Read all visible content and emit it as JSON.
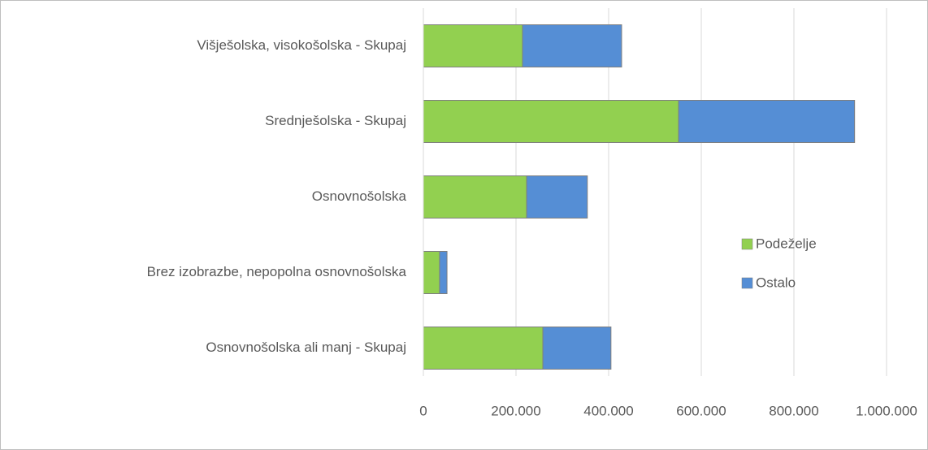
{
  "chart_data": {
    "type": "bar",
    "orientation": "horizontal",
    "stacked": true,
    "categories": [
      "Višješolska, visokošolska - Skupaj",
      "Srednješolska - Skupaj",
      "Osnovnošolska",
      "Brez izobrazbe, nepopolna osnovnošolska",
      "Osnovnošolska ali manj - Skupaj"
    ],
    "series": [
      {
        "name": "Podeželje",
        "color": "#92d050",
        "values": [
          214000,
          551000,
          223000,
          35000,
          258000
        ]
      },
      {
        "name": "Ostalo",
        "color": "#558ed5",
        "values": [
          214000,
          380000,
          131000,
          16000,
          147000
        ]
      }
    ],
    "xlim": [
      0,
      1000000
    ],
    "xticks": [
      0,
      {
        "value": 200000,
        "label": "200.000"
      },
      {
        "value": 400000,
        "label": "400.000"
      },
      {
        "value": 600000,
        "label": "600.000"
      },
      {
        "value": 800000,
        "label": "800.000"
      },
      {
        "value": 1000000,
        "label": "1.000.000"
      }
    ],
    "grid": true,
    "legend": "right"
  }
}
